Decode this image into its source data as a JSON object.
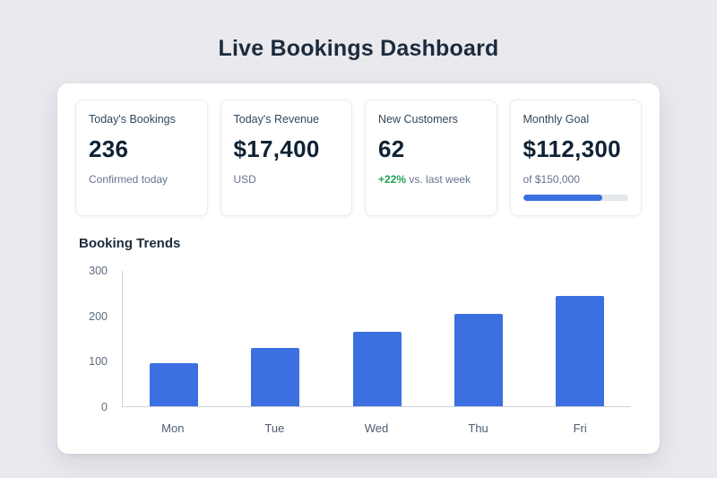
{
  "title": "Live Bookings Dashboard",
  "stats": [
    {
      "label": "Today's Bookings",
      "value": "236",
      "sub": "Confirmed today"
    },
    {
      "label": "Today's Revenue",
      "value": "$17,400",
      "sub": "USD"
    },
    {
      "label": "New Customers",
      "value": "62",
      "sub_highlight": "+22%",
      "sub": " vs. last week"
    },
    {
      "label": "Monthly Goal",
      "value": "$112,300",
      "sub": "of $150,000",
      "progress_percent": 75
    }
  ],
  "chart_data": {
    "type": "bar",
    "title": "Booking Trends",
    "categories": [
      "Mon",
      "Tue",
      "Wed",
      "Thu",
      "Fri"
    ],
    "values": [
      95,
      130,
      165,
      205,
      245
    ],
    "xlabel": "",
    "ylabel": "",
    "ylim": [
      0,
      300
    ],
    "yticks": [
      0,
      100,
      200,
      300
    ],
    "grid": false,
    "bar_color": "#3c6fe0"
  },
  "colors": {
    "accent_blue": "#3c6fe0",
    "positive_green": "#1fa356",
    "background": "#e9e9ee",
    "card": "#ffffff",
    "heading_text": "#1c2b3c"
  }
}
